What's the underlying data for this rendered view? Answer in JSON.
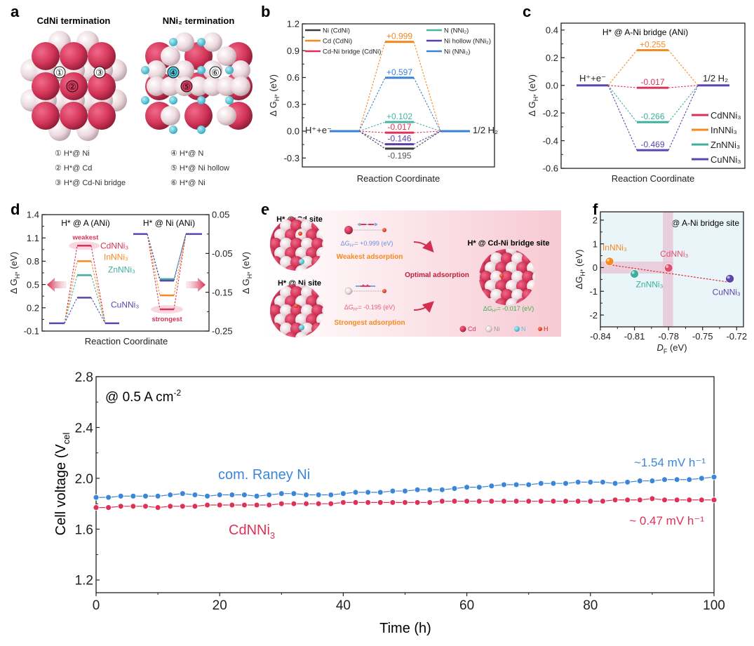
{
  "panel_letters": {
    "a": "a",
    "b": "b",
    "c": "c",
    "d": "d",
    "e": "e",
    "f": "f"
  },
  "panel_a": {
    "title_left": "CdNi termination",
    "title_right": "NNi₂ termination",
    "site_markers": [
      "①",
      "②",
      "③",
      "④",
      "⑤",
      "⑥"
    ],
    "legend_left": [
      "① H*@ Ni",
      "② H*@ Cd",
      "③ H*@ Cd-Ni bridge"
    ],
    "legend_right": [
      "④ H*@ N",
      "⑤ H*@ Ni hollow",
      "⑥ H*@ Ni"
    ],
    "colors": {
      "Cd": "#d6375e",
      "Ni": "#ecd9de",
      "N": "#52c3d6"
    }
  },
  "panel_e": {
    "cd_site_title": "H* @ Cd site",
    "ni_site_title": "H* @ Ni site",
    "bridge_title": "H* @ Cd-Ni bridge site",
    "cd_dg": "ΔG",
    "cd_dg_sub": "H*",
    "cd_dg_value": "= +0.999 (eV)",
    "ni_dg": "ΔG",
    "ni_dg_sub": "H*",
    "ni_dg_value": "= -0.195 (eV)",
    "bridge_dg": "ΔG",
    "bridge_dg_sub": "H*",
    "bridge_dg_value": "= -0.017 (eV)",
    "weakest": "Weakest adsorption",
    "strongest": "Strongest adsorption",
    "optimal": "Optimal adsorption",
    "legend": [
      "Cd",
      "Ni",
      "N",
      "H"
    ]
  },
  "chart_data": [
    {
      "id": "b",
      "type": "energy-level",
      "ylabel": {
        "main": "Δ G",
        "sub": "H*",
        "unit": " (eV)"
      },
      "xlabel": "Reaction Coordinate",
      "ylim": [
        -0.4,
        1.2
      ],
      "yticks": [
        "-0.3",
        "0.0",
        "0.3",
        "0.6",
        "0.9",
        "1.2"
      ],
      "start_label": "H⁺+e⁻",
      "end_label": "1/2 H₂",
      "baseline_color": "#3b82d4",
      "series": [
        {
          "name": "Ni (CdNi)",
          "value": -0.195,
          "label": "-0.195",
          "color": "#3d3d3d"
        },
        {
          "name": "Cd (CdNi)",
          "value": 0.999,
          "label": "+0.999",
          "color": "#f7871c"
        },
        {
          "name": "Cd-Ni bridge (CdNi)",
          "value": -0.017,
          "label": "-0.017",
          "color": "#e0305a"
        },
        {
          "name": "N (NNi₂)",
          "value": 0.102,
          "label": "+0.102",
          "color": "#45b4a4"
        },
        {
          "name": "Ni hollow (NNi₂)",
          "value": -0.146,
          "label": "-0.146",
          "color": "#5a3fa8"
        },
        {
          "name": "Ni (NNi₂)",
          "value": 0.597,
          "label": "+0.597",
          "color": "#3b82d4"
        }
      ],
      "legend_placement": "top (two columns)"
    },
    {
      "id": "c",
      "type": "energy-level",
      "title": "H* @ A-Ni bridge (ANi)",
      "ylabel": {
        "main": "Δ G",
        "sub": "H*",
        "unit": " (eV)"
      },
      "xlabel": "Reaction Coordinate",
      "ylim": [
        -0.6,
        0.45
      ],
      "yticks": [
        "-0.6",
        "-0.4",
        "-0.2",
        "0.0",
        "0.2",
        "0.4"
      ],
      "start_label": "H⁺+e⁻",
      "end_label": "1/2 H₂",
      "baseline_color": "#5b45ae",
      "series": [
        {
          "name": "CdNNi₃",
          "value": -0.017,
          "label": "-0.017",
          "color": "#d6335a"
        },
        {
          "name": "InNNi₃",
          "value": 0.255,
          "label": "+0.255",
          "color": "#f7891f"
        },
        {
          "name": "ZnNNi₃",
          "value": -0.266,
          "label": "-0.266",
          "color": "#3fae9c"
        },
        {
          "name": "CuNNi₃",
          "value": -0.469,
          "label": "-0.469",
          "color": "#5b45ae"
        }
      ],
      "legend_placement": "bottom-right"
    },
    {
      "id": "d",
      "type": "energy-level",
      "subtitle_left": "H* @ A (ANi)",
      "subtitle_right": "H* @ Ni (ANi)",
      "ylabel": {
        "main": "Δ G",
        "sub": "H*",
        "unit": " (eV)"
      },
      "ylabel_right": {
        "main": "Δ G",
        "sub": "H*",
        "unit": " (eV)"
      },
      "xlabel": "Reaction Coordinate",
      "ylim": [
        -0.1,
        1.4
      ],
      "ylim_right": [
        -0.25,
        0.05
      ],
      "yticks": [
        "-0.1",
        "0.2",
        "0.5",
        "0.8",
        "1.1",
        "1.4"
      ],
      "yticks_right": [
        "0.05",
        "-0.05",
        "-0.15",
        "-0.25"
      ],
      "weakest_label": "weakest",
      "strongest_label": "strongest",
      "baseline_color": "#5b45ae",
      "series": [
        {
          "name": "CdNNi₃",
          "value_A": 1.0,
          "value_Ni": -0.194,
          "color": "#d6335a"
        },
        {
          "name": "InNNi₃",
          "value_A": 0.8,
          "value_Ni": -0.158,
          "color": "#f7891f"
        },
        {
          "name": "ZnNNi₃",
          "value_A": 0.62,
          "value_Ni": -0.116,
          "color": "#3fae9c"
        },
        {
          "name": "CuNNi₃",
          "value_A": 0.33,
          "value_Ni": -0.12,
          "color": "#5b45ae"
        }
      ]
    },
    {
      "id": "f",
      "type": "scatter",
      "annotation": "@ A-Ni bridge site",
      "xlabel": {
        "main": "D",
        "sub": "F",
        "unit": " (eV)"
      },
      "ylabel": {
        "main": "ΔG",
        "sub": "H*",
        "unit": " (eV)"
      },
      "xlim": [
        -0.84,
        -0.714
      ],
      "ylim": [
        -2.5,
        2.35
      ],
      "xticks": [
        "-0.84",
        "-0.81",
        "-0.78",
        "-0.75",
        "-0.72"
      ],
      "yticks": [
        "-2",
        "-1",
        "0",
        "1",
        "2"
      ],
      "background": "#eaf5fa",
      "points": [
        {
          "name": "InNNi₃",
          "x": -0.832,
          "y": 0.255,
          "color": "#f7891f"
        },
        {
          "name": "ZnNNi₃",
          "x": -0.81,
          "y": -0.266,
          "color": "#3fae9c"
        },
        {
          "name": "CdNNi₃",
          "x": -0.78,
          "y": -0.017,
          "color": "#e0506e"
        },
        {
          "name": "CuNNi₃",
          "x": -0.726,
          "y": -0.469,
          "color": "#5b45ae"
        }
      ],
      "trendline": {
        "x": [
          -0.832,
          -0.726
        ],
        "y": [
          0.12,
          -0.62
        ],
        "color": "#e8323c"
      },
      "highlight_band_y": [
        -0.25,
        0.25
      ],
      "highlight_band_x": [
        -0.785,
        -0.776
      ]
    },
    {
      "id": "stability",
      "type": "scatter-line",
      "annotation": {
        "main": "@ 0.5 A cm",
        "sup": "-2"
      },
      "xlabel": "Time (h)",
      "ylabel": {
        "main": "Cell voltage (V",
        "sub": "cel"
      },
      "xlim": [
        0,
        100
      ],
      "ylim": [
        1.1,
        2.8
      ],
      "xticks": [
        "0",
        "20",
        "40",
        "60",
        "80",
        "100"
      ],
      "yticks": [
        "1.2",
        "1.6",
        "2.0",
        "2.4",
        "2.8"
      ],
      "x": [
        0,
        2,
        4,
        6,
        8,
        10,
        12,
        14,
        16,
        18,
        20,
        22,
        24,
        26,
        28,
        30,
        32,
        34,
        36,
        38,
        40,
        42,
        44,
        46,
        48,
        50,
        52,
        54,
        56,
        58,
        60,
        62,
        64,
        66,
        68,
        70,
        72,
        74,
        76,
        78,
        80,
        82,
        84,
        86,
        88,
        90,
        92,
        94,
        96,
        98,
        100
      ],
      "series": [
        {
          "name": "com. Raney Ni",
          "rate": "~1.54 mV h⁻¹",
          "color": "#3b86d8",
          "values": [
            1.85,
            1.85,
            1.86,
            1.86,
            1.86,
            1.86,
            1.87,
            1.88,
            1.87,
            1.86,
            1.87,
            1.87,
            1.87,
            1.86,
            1.87,
            1.88,
            1.88,
            1.87,
            1.87,
            1.87,
            1.88,
            1.89,
            1.89,
            1.89,
            1.9,
            1.9,
            1.91,
            1.91,
            1.91,
            1.92,
            1.93,
            1.93,
            1.94,
            1.95,
            1.95,
            1.95,
            1.96,
            1.96,
            1.96,
            1.97,
            1.97,
            1.97,
            1.96,
            1.97,
            1.98,
            1.98,
            1.99,
            1.99,
            1.99,
            2.0,
            2.01
          ]
        },
        {
          "name": "CdNNi",
          "name_sub": "3",
          "rate": "~ 0.47 mV h⁻¹",
          "color": "#de3158",
          "values": [
            1.77,
            1.77,
            1.78,
            1.78,
            1.78,
            1.77,
            1.78,
            1.78,
            1.78,
            1.79,
            1.79,
            1.79,
            1.79,
            1.79,
            1.79,
            1.8,
            1.8,
            1.8,
            1.8,
            1.8,
            1.81,
            1.81,
            1.81,
            1.81,
            1.81,
            1.81,
            1.81,
            1.81,
            1.82,
            1.82,
            1.82,
            1.82,
            1.82,
            1.82,
            1.82,
            1.82,
            1.82,
            1.82,
            1.82,
            1.82,
            1.82,
            1.82,
            1.83,
            1.83,
            1.83,
            1.84,
            1.83,
            1.83,
            1.83,
            1.83,
            1.83
          ]
        }
      ]
    }
  ]
}
